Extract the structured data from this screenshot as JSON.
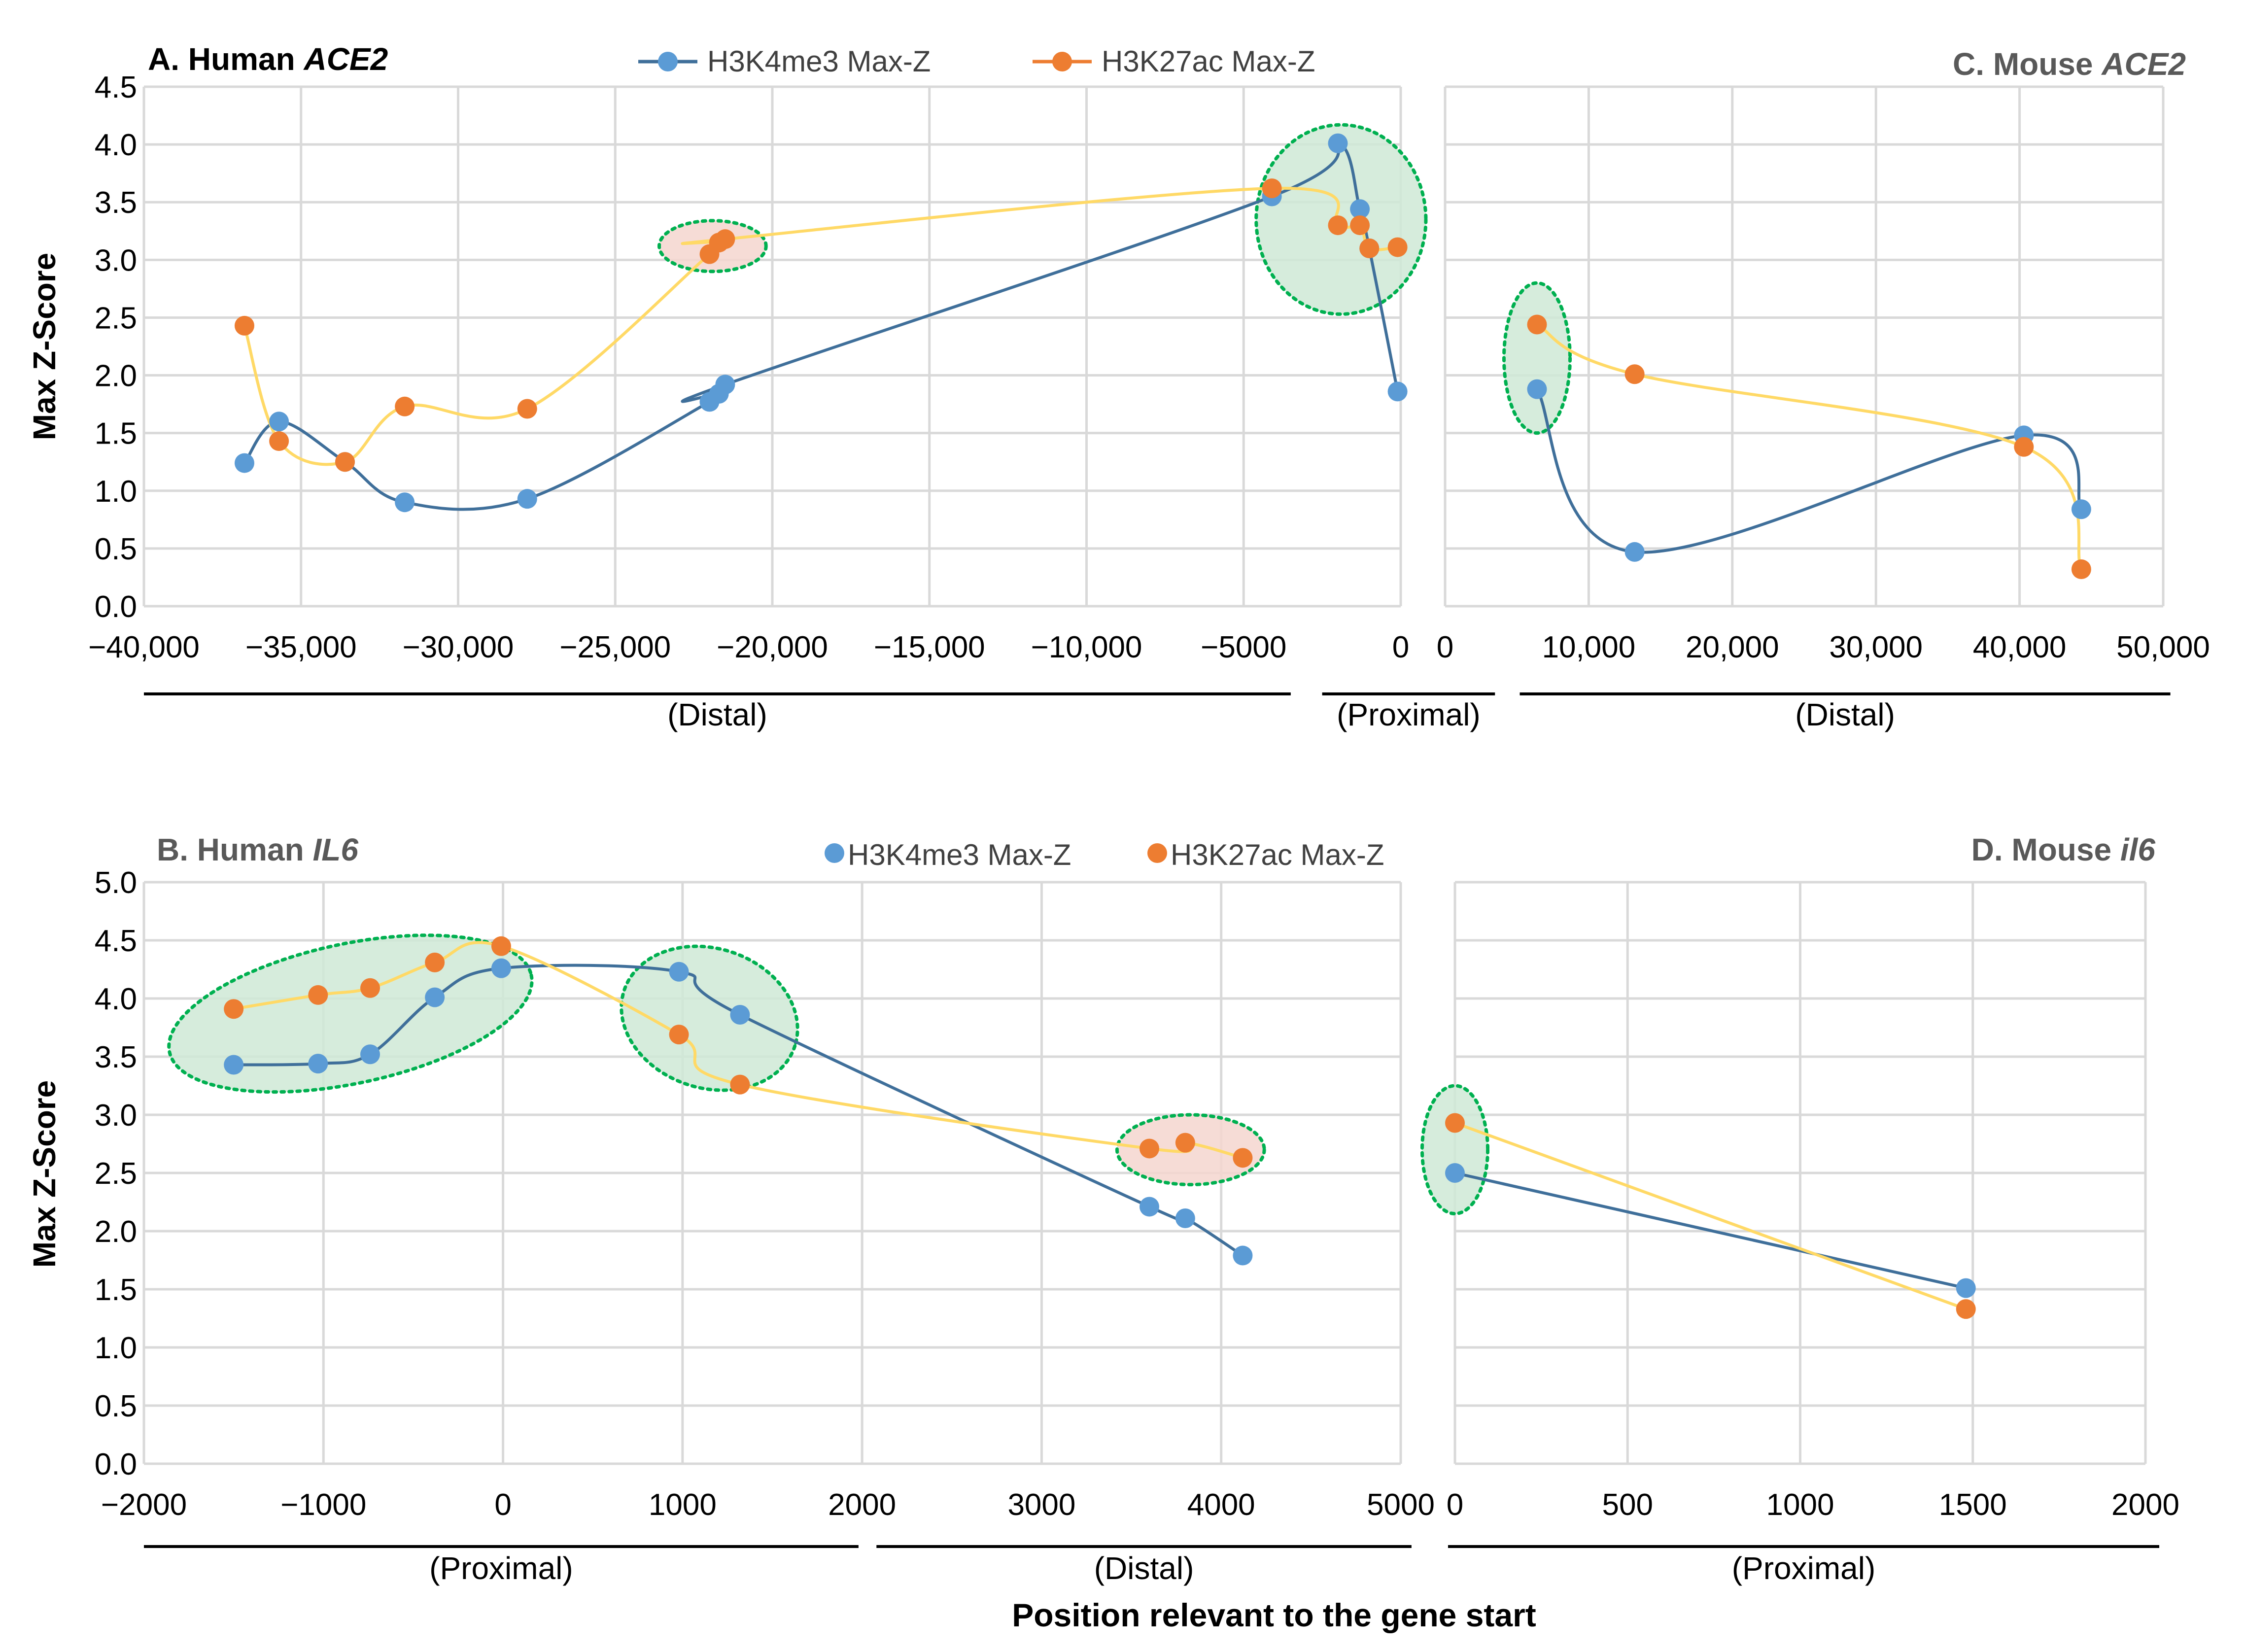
{
  "figure": {
    "x_axis_title": "Position  relevant to the gene start",
    "y_axis_title": "Max Z-Score",
    "colors": {
      "h3k4me3": "#5b9bd5",
      "h3k27ac": "#ed7d31",
      "h3k4me3_line": "#3f6f9a",
      "h3k27ac_line": "#ffd966",
      "green_fill": "#cfe9d6",
      "green_stroke": "#00b050",
      "red_fill": "#f4d6cf",
      "grid": "#d9d9d9",
      "axis_text": "#404040"
    }
  },
  "chart_data": [
    {
      "id": "A",
      "type": "line",
      "title_prefix": "A. Human ",
      "title_gene": "ACE2",
      "legend_style": "line",
      "ylabel": "Max Z-Score",
      "xlim": [
        -40000,
        0
      ],
      "ylim": [
        0,
        4.5
      ],
      "x_ticks": [
        -40000,
        -35000,
        -30000,
        -25000,
        -20000,
        -15000,
        -10000,
        -5000,
        0
      ],
      "x_tick_labels": [
        "−40,000",
        "−35,000",
        "−30,000",
        "−25,000",
        "−20,000",
        "−15,000",
        "−10,000",
        "−5000",
        "0"
      ],
      "y_ticks": [
        0,
        0.5,
        1,
        1.5,
        2,
        2.5,
        3,
        3.5,
        4,
        4.5
      ],
      "y_tick_labels": [
        "0.0",
        "0.5",
        "1.0",
        "1.5",
        "2.0",
        "2.5",
        "3.0",
        "3.5",
        "4.0",
        "4.5"
      ],
      "regions": [
        {
          "label": "(Distal)",
          "from": -40000,
          "to": -3500
        },
        {
          "label": "(Proximal)",
          "from": -2500,
          "to": 3000
        }
      ],
      "ellipses": [
        {
          "cx": -21900,
          "cy": 3.12,
          "rx": 1700,
          "ry": 0.22,
          "fill": "red"
        },
        {
          "cx": -1900,
          "cy": 3.35,
          "rx": 2700,
          "ry": 0.82,
          "fill": "green"
        }
      ],
      "series": [
        {
          "name": "H3K4me3 Max-Z",
          "points": [
            [
              -36800,
              1.24
            ],
            [
              -35700,
              1.6
            ],
            [
              -33600,
              1.25
            ],
            [
              -31700,
              0.9
            ],
            [
              -27800,
              0.93
            ],
            [
              -22000,
              1.77
            ],
            [
              -21700,
              1.84
            ],
            [
              -21500,
              1.92
            ],
            [
              -4100,
              3.55
            ],
            [
              -2000,
              4.01
            ],
            [
              -1300,
              3.44
            ],
            [
              -1000,
              3.1
            ],
            [
              -100,
              1.86
            ]
          ]
        },
        {
          "name": "H3K27ac Max-Z",
          "points": [
            [
              -36800,
              2.43
            ],
            [
              -35700,
              1.43
            ],
            [
              -33600,
              1.25
            ],
            [
              -31700,
              1.73
            ],
            [
              -27800,
              1.71
            ],
            [
              -22000,
              3.05
            ],
            [
              -21700,
              3.15
            ],
            [
              -21500,
              3.18
            ],
            [
              -4100,
              3.62
            ],
            [
              -2000,
              3.3
            ],
            [
              -1300,
              3.3
            ],
            [
              -1000,
              3.1
            ],
            [
              -100,
              3.11
            ]
          ]
        }
      ]
    },
    {
      "id": "C",
      "type": "line",
      "title_prefix": "C. Mouse ",
      "title_gene": "ACE2",
      "xlim": [
        0,
        50000
      ],
      "ylim": [
        0,
        4.5
      ],
      "x_ticks": [
        0,
        10000,
        20000,
        30000,
        40000,
        50000
      ],
      "x_tick_labels": [
        "0",
        "10,000",
        "20,000",
        "30,000",
        "40,000",
        "50,000"
      ],
      "regions": [
        {
          "label": "(Distal)",
          "from": 5200,
          "to": 50500
        }
      ],
      "ellipses": [
        {
          "cx": 6400,
          "cy": 2.15,
          "rx": 2300,
          "ry": 0.65,
          "fill": "green"
        }
      ],
      "series": [
        {
          "name": "H3K4me3 Max-Z",
          "points": [
            [
              6400,
              1.88
            ],
            [
              13200,
              0.47
            ],
            [
              40300,
              1.48
            ],
            [
              44300,
              0.84
            ]
          ]
        },
        {
          "name": "H3K27ac Max-Z",
          "points": [
            [
              6400,
              2.44
            ],
            [
              13200,
              2.01
            ],
            [
              40300,
              1.38
            ],
            [
              44300,
              0.32
            ]
          ]
        }
      ]
    },
    {
      "id": "B",
      "type": "line",
      "title_prefix": "B. Human ",
      "title_gene": "IL6",
      "legend_style": "marker",
      "ylabel": "Max Z-Score",
      "xlim": [
        -2000,
        5000
      ],
      "ylim": [
        0,
        5
      ],
      "x_ticks": [
        -2000,
        -1000,
        0,
        1000,
        2000,
        3000,
        4000,
        5000
      ],
      "x_tick_labels": [
        "−2000",
        "−1000",
        "0",
        "1000",
        "2000",
        "3000",
        "4000",
        "5000"
      ],
      "y_ticks": [
        0,
        0.5,
        1,
        1.5,
        2,
        2.5,
        3,
        3.5,
        4,
        4.5,
        5
      ],
      "y_tick_labels": [
        "0.0",
        "0.5",
        "1.0",
        "1.5",
        "2.0",
        "2.5",
        "3.0",
        "3.5",
        "4.0",
        "4.5",
        "5.0"
      ],
      "regions": [
        {
          "label": "(Proximal)",
          "from": -2000,
          "to": 1980
        },
        {
          "label": "(Distal)",
          "from": 2080,
          "to": 5060
        }
      ],
      "ellipses": [
        {
          "cx": -850,
          "cy": 3.87,
          "rx": 1030,
          "ry": 0.6,
          "fill": "green",
          "rotate": -12
        },
        {
          "cx": 1150,
          "cy": 3.83,
          "rx": 500,
          "ry": 0.6,
          "fill": "green",
          "rotate": 18
        },
        {
          "cx": 3830,
          "cy": 2.7,
          "rx": 410,
          "ry": 0.3,
          "fill": "red"
        }
      ],
      "series": [
        {
          "name": "H3K4me3 Max-Z",
          "points": [
            [
              -1500,
              3.43
            ],
            [
              -1030,
              3.44
            ],
            [
              -740,
              3.52
            ],
            [
              -380,
              4.01
            ],
            [
              -10,
              4.26
            ],
            [
              980,
              4.23
            ],
            [
              1320,
              3.86
            ],
            [
              3600,
              2.21
            ],
            [
              3800,
              2.11
            ],
            [
              4120,
              1.79
            ]
          ]
        },
        {
          "name": "H3K27ac Max-Z",
          "points": [
            [
              -1500,
              3.91
            ],
            [
              -1030,
              4.03
            ],
            [
              -740,
              4.09
            ],
            [
              -380,
              4.31
            ],
            [
              -10,
              4.45
            ],
            [
              980,
              3.69
            ],
            [
              1320,
              3.26
            ],
            [
              3600,
              2.71
            ],
            [
              3800,
              2.76
            ],
            [
              4120,
              2.63
            ]
          ]
        }
      ]
    },
    {
      "id": "D",
      "type": "line",
      "title_prefix": "D. Mouse ",
      "title_gene": "il6",
      "xlim": [
        0,
        2000
      ],
      "ylim": [
        0,
        5
      ],
      "x_ticks": [
        0,
        500,
        1000,
        1500,
        2000
      ],
      "x_tick_labels": [
        "0",
        "500",
        "1000",
        "1500",
        "2000"
      ],
      "regions": [
        {
          "label": "(Proximal)",
          "from": -20,
          "to": 2040
        }
      ],
      "ellipses": [
        {
          "cx": 0,
          "cy": 2.7,
          "rx": 95,
          "ry": 0.55,
          "fill": "green"
        }
      ],
      "series": [
        {
          "name": "H3K4me3 Max-Z",
          "points": [
            [
              0,
              2.5
            ],
            [
              1480,
              1.51
            ]
          ]
        },
        {
          "name": "H3K27ac Max-Z",
          "points": [
            [
              0,
              2.93
            ],
            [
              1480,
              1.33
            ]
          ]
        }
      ]
    }
  ]
}
